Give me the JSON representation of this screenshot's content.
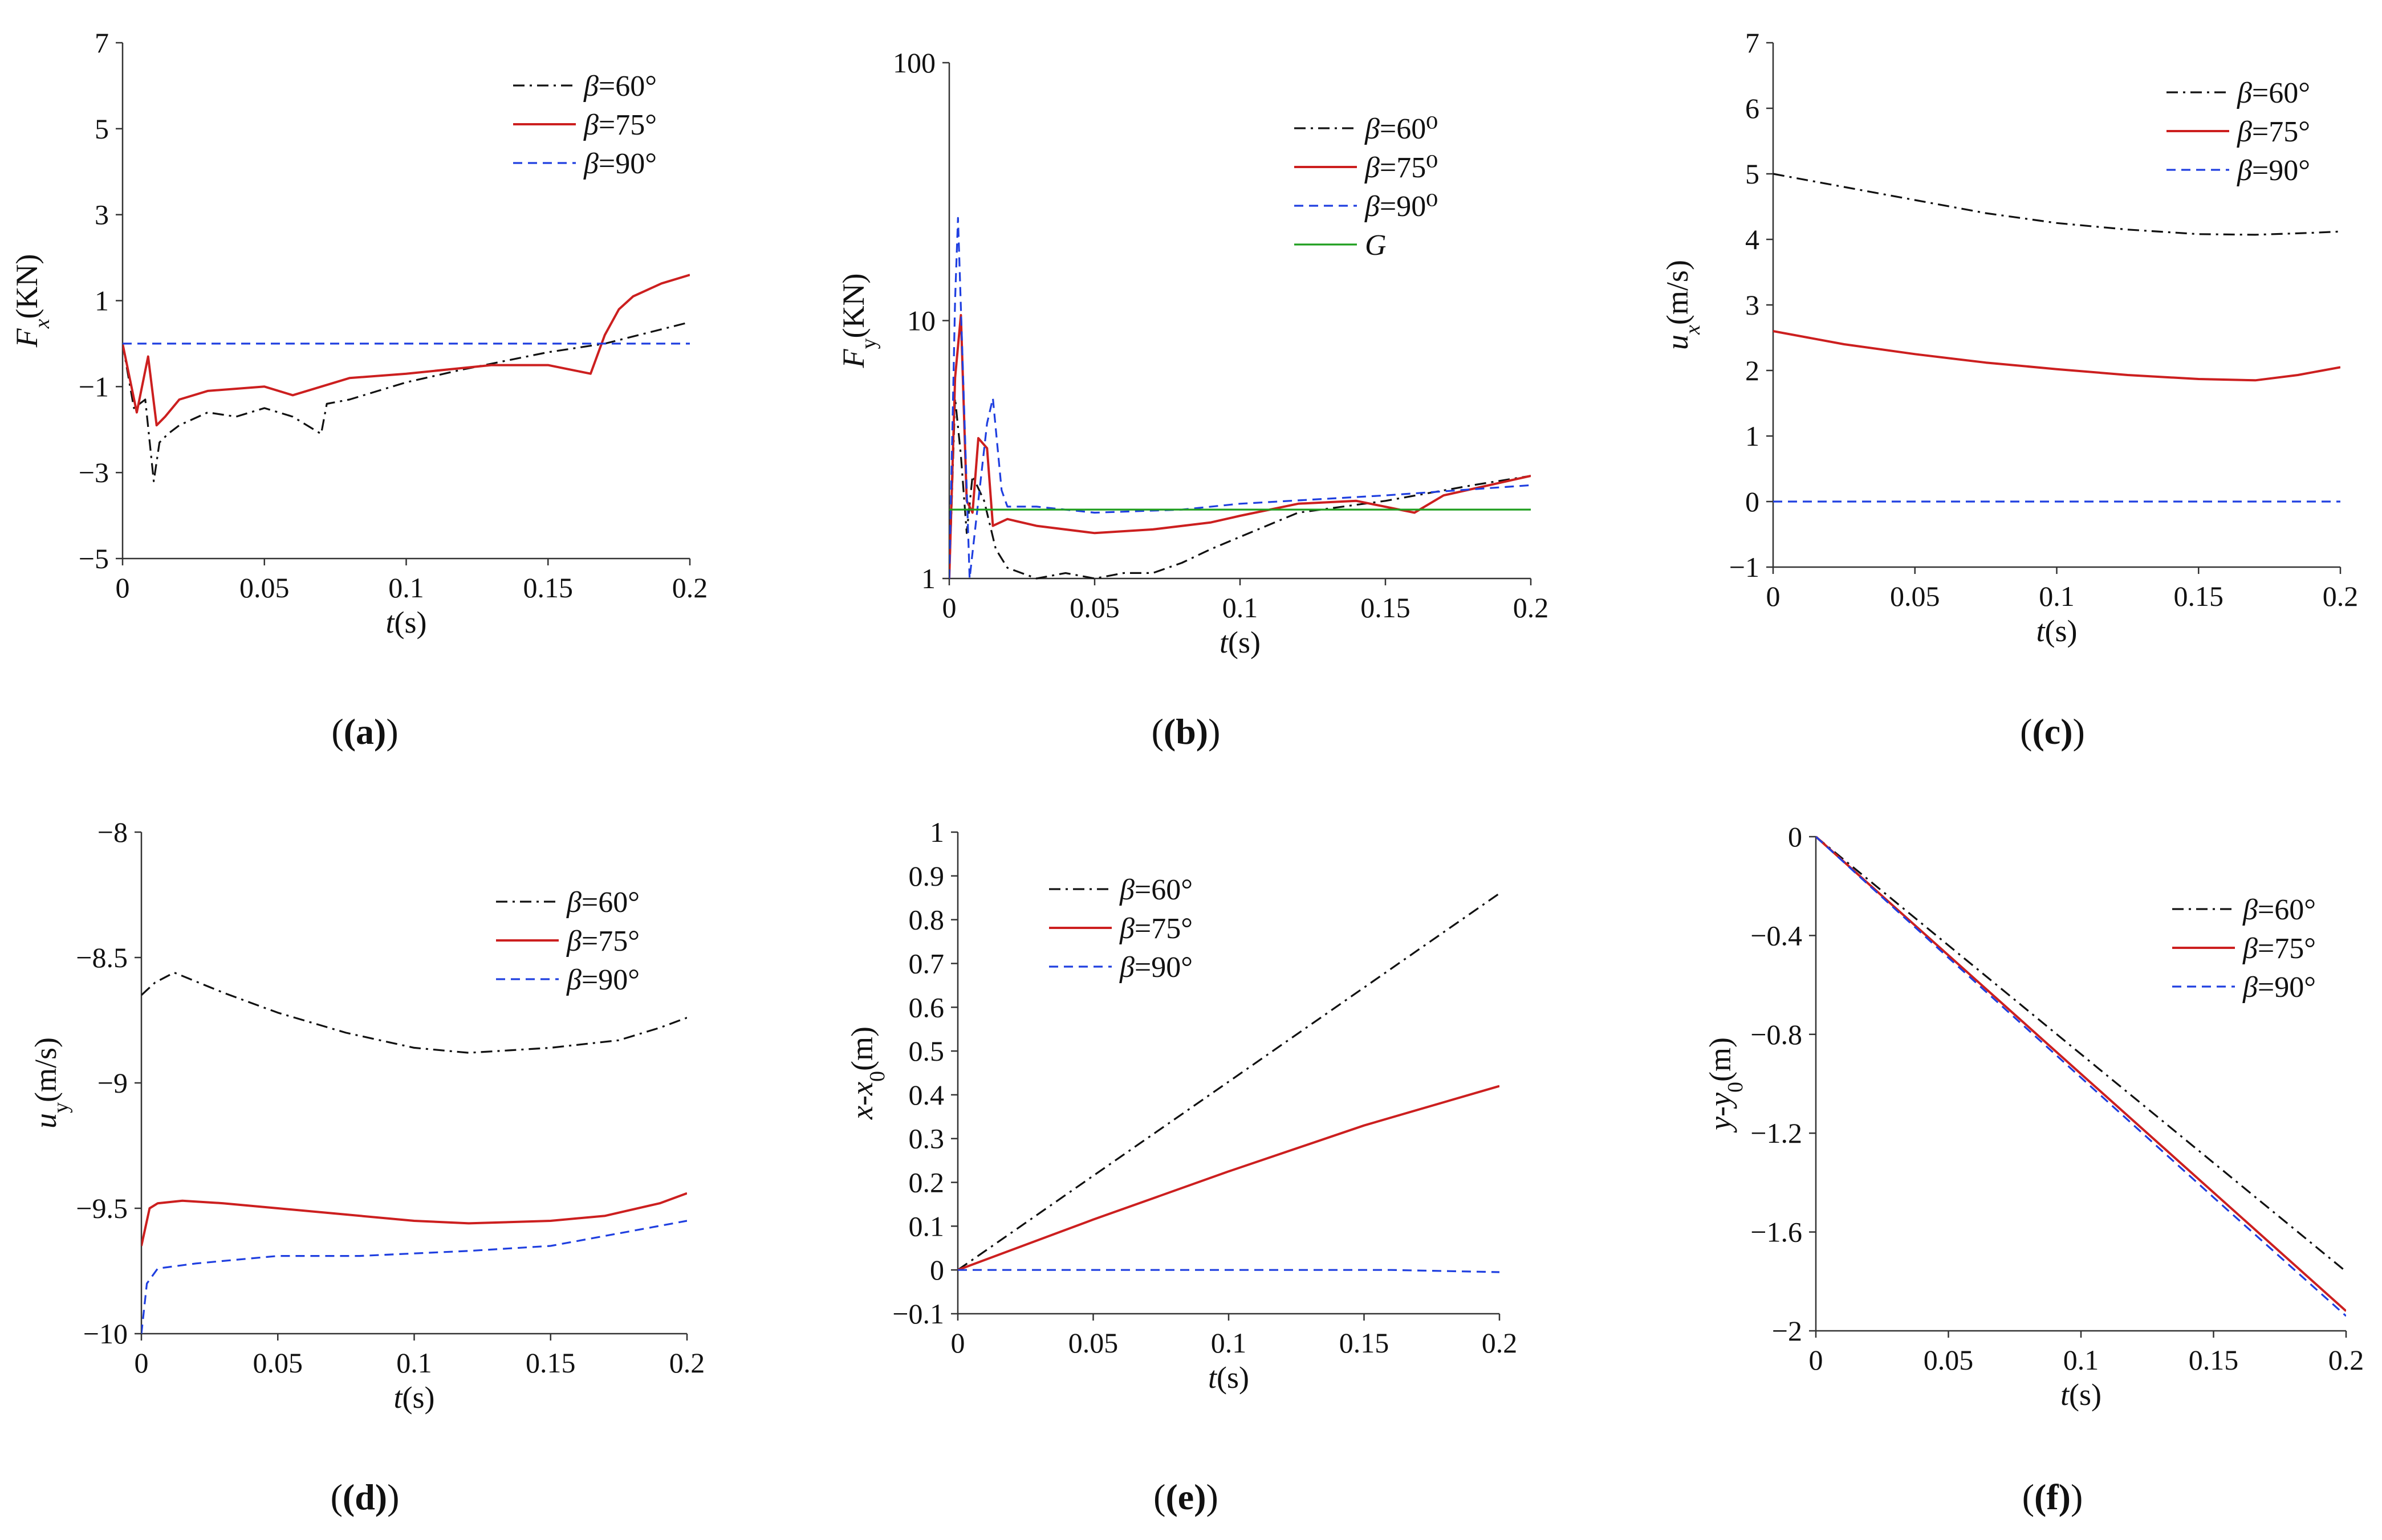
{
  "figure": {
    "subplot_labels": [
      "(a)",
      "(b)",
      "(c)",
      "(d)",
      "(e)",
      "(f)"
    ],
    "line_styles": {
      "beta60": {
        "color": "#111111",
        "dash": "dash-dot"
      },
      "beta75": {
        "color": "#cc1f1f",
        "dash": "solid"
      },
      "beta90": {
        "color": "#1f3fe0",
        "dash": "dashed"
      },
      "G": {
        "color": "#1e9e1e",
        "dash": "solid"
      }
    }
  },
  "chart_data": [
    {
      "id": "a",
      "type": "line",
      "xlabel": "t(s)",
      "ylabel": "Fx(KN)",
      "xlim": [
        0,
        0.2
      ],
      "ylim": [
        -5,
        7
      ],
      "xticks": [
        "0",
        "0.05",
        "0.1",
        "0.15",
        "0.2"
      ],
      "yticks": [
        "7",
        "5",
        "3",
        "1",
        "-1",
        "-3",
        "-5"
      ],
      "ytick_values": [
        7,
        5,
        3,
        1,
        -1,
        -3,
        -5
      ],
      "legend_position": "top-right",
      "series": [
        {
          "name": "β=60°",
          "style": "beta60",
          "x": [
            0,
            0.004,
            0.008,
            0.011,
            0.013,
            0.016,
            0.02,
            0.03,
            0.04,
            0.05,
            0.06,
            0.07,
            0.072,
            0.08,
            0.09,
            0.1,
            0.12,
            0.15,
            0.17,
            0.2
          ],
          "y": [
            0,
            -1.5,
            -1.3,
            -3.2,
            -2.3,
            -2.1,
            -1.9,
            -1.6,
            -1.7,
            -1.5,
            -1.7,
            -2.1,
            -1.4,
            -1.3,
            -1.1,
            -0.9,
            -0.6,
            -0.2,
            0,
            0.5
          ]
        },
        {
          "name": "β=75°",
          "style": "beta75",
          "x": [
            0,
            0.005,
            0.009,
            0.012,
            0.015,
            0.02,
            0.03,
            0.05,
            0.06,
            0.08,
            0.1,
            0.13,
            0.15,
            0.165,
            0.17,
            0.175,
            0.18,
            0.19,
            0.2
          ],
          "y": [
            0,
            -1.6,
            -0.3,
            -1.9,
            -1.7,
            -1.3,
            -1.1,
            -1.0,
            -1.2,
            -0.8,
            -0.7,
            -0.5,
            -0.5,
            -0.7,
            0.2,
            0.8,
            1.1,
            1.4,
            1.6
          ]
        },
        {
          "name": "β=90°",
          "style": "beta90",
          "x": [
            0,
            0.2
          ],
          "y": [
            0,
            0
          ]
        }
      ]
    },
    {
      "id": "b",
      "type": "line",
      "xlabel": "t(s)",
      "ylabel": "Fy(KN)",
      "log_y": true,
      "xlim": [
        0,
        0.2
      ],
      "ylim": [
        1,
        100
      ],
      "xticks": [
        "0",
        "0.05",
        "0.1",
        "0.15",
        "0.2"
      ],
      "yticks": [
        "100",
        "10",
        "1"
      ],
      "ytick_values": [
        100,
        10,
        1
      ],
      "legend_position": "top-right",
      "series": [
        {
          "name": "β=60⁰",
          "style": "beta60",
          "x": [
            0,
            0.002,
            0.004,
            0.006,
            0.008,
            0.012,
            0.016,
            0.02,
            0.03,
            0.04,
            0.05,
            0.06,
            0.07,
            0.08,
            0.09,
            0.1,
            0.12,
            0.15,
            0.18,
            0.2
          ],
          "y": [
            1,
            5,
            3,
            1.5,
            2.5,
            2,
            1.3,
            1.1,
            1.0,
            1.05,
            1.0,
            1.05,
            1.05,
            1.15,
            1.3,
            1.45,
            1.8,
            2.0,
            2.3,
            2.5
          ]
        },
        {
          "name": "β=75⁰",
          "style": "beta75",
          "x": [
            0,
            0.002,
            0.004,
            0.006,
            0.008,
            0.01,
            0.013,
            0.015,
            0.02,
            0.03,
            0.05,
            0.07,
            0.09,
            0.1,
            0.12,
            0.14,
            0.16,
            0.17,
            0.2
          ],
          "y": [
            1,
            6,
            10.5,
            2,
            1.8,
            3.5,
            3.2,
            1.6,
            1.7,
            1.6,
            1.5,
            1.55,
            1.65,
            1.75,
            1.95,
            2.0,
            1.8,
            2.1,
            2.5
          ]
        },
        {
          "name": "β=90⁰",
          "style": "beta90",
          "x": [
            0,
            0.002,
            0.003,
            0.005,
            0.007,
            0.01,
            0.013,
            0.015,
            0.018,
            0.02,
            0.03,
            0.05,
            0.08,
            0.1,
            0.15,
            0.2
          ],
          "y": [
            1,
            12,
            25,
            5,
            1,
            2,
            4,
            5,
            2.2,
            1.9,
            1.9,
            1.8,
            1.85,
            1.95,
            2.1,
            2.3
          ]
        },
        {
          "name": "G",
          "style": "G",
          "x": [
            0,
            0.2
          ],
          "y": [
            1.85,
            1.85
          ]
        }
      ]
    },
    {
      "id": "c",
      "type": "line",
      "xlabel": "t(s)",
      "ylabel": "ux(m/s)",
      "xlim": [
        0,
        0.2
      ],
      "ylim": [
        -1,
        7
      ],
      "xticks": [
        "0",
        "0.05",
        "0.1",
        "0.15",
        "0.2"
      ],
      "yticks": [
        "7",
        "6",
        "5",
        "4",
        "3",
        "2",
        "1",
        "0",
        "-1"
      ],
      "ytick_values": [
        7,
        6,
        5,
        4,
        3,
        2,
        1,
        0,
        -1
      ],
      "legend_position": "top-right",
      "series": [
        {
          "name": "β=60°",
          "style": "beta60",
          "x": [
            0,
            0.025,
            0.05,
            0.075,
            0.1,
            0.125,
            0.15,
            0.17,
            0.19,
            0.2
          ],
          "y": [
            5.0,
            4.8,
            4.6,
            4.4,
            4.25,
            4.15,
            4.08,
            4.07,
            4.1,
            4.12
          ]
        },
        {
          "name": "β=75°",
          "style": "beta75",
          "x": [
            0,
            0.025,
            0.05,
            0.075,
            0.1,
            0.125,
            0.15,
            0.17,
            0.185,
            0.2
          ],
          "y": [
            2.6,
            2.4,
            2.25,
            2.12,
            2.02,
            1.93,
            1.87,
            1.85,
            1.93,
            2.05
          ]
        },
        {
          "name": "β=90°",
          "style": "beta90",
          "x": [
            0,
            0.2
          ],
          "y": [
            0,
            0
          ]
        }
      ]
    },
    {
      "id": "d",
      "type": "line",
      "xlabel": "t(s)",
      "ylabel": "uy(m/s)",
      "xlim": [
        0,
        0.2
      ],
      "ylim": [
        -10,
        -8
      ],
      "xticks": [
        "0",
        "0.05",
        "0.1",
        "0.15",
        "0.2"
      ],
      "yticks": [
        "-8",
        "-8.5",
        "-9",
        "-9.5",
        "-10"
      ],
      "ytick_values": [
        -8,
        -8.5,
        -9,
        -9.5,
        -10
      ],
      "legend_position": "top-right",
      "series": [
        {
          "name": "β=60°",
          "style": "beta60",
          "x": [
            0,
            0.005,
            0.012,
            0.03,
            0.05,
            0.075,
            0.1,
            0.12,
            0.15,
            0.175,
            0.19,
            0.2
          ],
          "y": [
            -8.65,
            -8.6,
            -8.56,
            -8.64,
            -8.72,
            -8.8,
            -8.86,
            -8.88,
            -8.86,
            -8.83,
            -8.78,
            -8.74
          ]
        },
        {
          "name": "β=75°",
          "style": "beta75",
          "x": [
            0,
            0.003,
            0.006,
            0.015,
            0.03,
            0.05,
            0.07,
            0.1,
            0.12,
            0.15,
            0.17,
            0.19,
            0.2
          ],
          "y": [
            -9.65,
            -9.5,
            -9.48,
            -9.47,
            -9.48,
            -9.5,
            -9.52,
            -9.55,
            -9.56,
            -9.55,
            -9.53,
            -9.48,
            -9.44
          ]
        },
        {
          "name": "β=90°",
          "style": "beta90",
          "x": [
            0,
            0.002,
            0.006,
            0.02,
            0.05,
            0.08,
            0.12,
            0.15,
            0.17,
            0.19,
            0.2
          ],
          "y": [
            -10,
            -9.8,
            -9.74,
            -9.72,
            -9.69,
            -9.69,
            -9.67,
            -9.65,
            -9.61,
            -9.57,
            -9.55
          ]
        }
      ]
    },
    {
      "id": "e",
      "type": "line",
      "xlabel": "t(s)",
      "ylabel": "x-x0(m)",
      "xlim": [
        0,
        0.2
      ],
      "ylim": [
        -0.1,
        1
      ],
      "xticks": [
        "0",
        "0.05",
        "0.1",
        "0.15",
        "0.2"
      ],
      "yticks": [
        "1",
        "0.9",
        "0.8",
        "0.7",
        "0.6",
        "0.5",
        "0.4",
        "0.3",
        "0.2",
        "0.1",
        "0",
        "-0.1"
      ],
      "ytick_values": [
        1,
        0.9,
        0.8,
        0.7,
        0.6,
        0.5,
        0.4,
        0.3,
        0.2,
        0.1,
        0,
        -0.1
      ],
      "legend_position": "top-left",
      "series": [
        {
          "name": "β=60°",
          "style": "beta60",
          "x": [
            0,
            0.05,
            0.1,
            0.15,
            0.2
          ],
          "y": [
            0,
            0.215,
            0.43,
            0.645,
            0.86
          ]
        },
        {
          "name": "β=75°",
          "style": "beta75",
          "x": [
            0,
            0.05,
            0.1,
            0.15,
            0.2
          ],
          "y": [
            0,
            0.115,
            0.225,
            0.33,
            0.42
          ]
        },
        {
          "name": "β=90°",
          "style": "beta90",
          "x": [
            0,
            0.05,
            0.1,
            0.16,
            0.2
          ],
          "y": [
            0,
            0,
            0,
            0,
            -0.005
          ]
        }
      ]
    },
    {
      "id": "f",
      "type": "line",
      "xlabel": "t(s)",
      "ylabel": "y-y0(m)",
      "xlim": [
        0,
        0.2
      ],
      "ylim": [
        -2,
        0
      ],
      "xticks": [
        "0",
        "0.05",
        "0.1",
        "0.15",
        "0.2"
      ],
      "yticks": [
        "0",
        "-0.4",
        "-0.8",
        "-1.2",
        "-1.6",
        "-2"
      ],
      "ytick_values": [
        0,
        -0.4,
        -0.8,
        -1.2,
        -1.6,
        -2
      ],
      "legend_position": "top-right",
      "series": [
        {
          "name": "β=60°",
          "style": "beta60",
          "x": [
            0,
            0.05,
            0.1,
            0.15,
            0.2
          ],
          "y": [
            0,
            -0.44,
            -0.88,
            -1.32,
            -1.76
          ]
        },
        {
          "name": "β=75°",
          "style": "beta75",
          "x": [
            0,
            0.05,
            0.1,
            0.15,
            0.2
          ],
          "y": [
            0,
            -0.48,
            -0.96,
            -1.44,
            -1.92
          ]
        },
        {
          "name": "β=90°",
          "style": "beta90",
          "x": [
            0,
            0.05,
            0.1,
            0.15,
            0.2
          ],
          "y": [
            0,
            -0.49,
            -0.975,
            -1.46,
            -1.94
          ]
        }
      ]
    }
  ]
}
